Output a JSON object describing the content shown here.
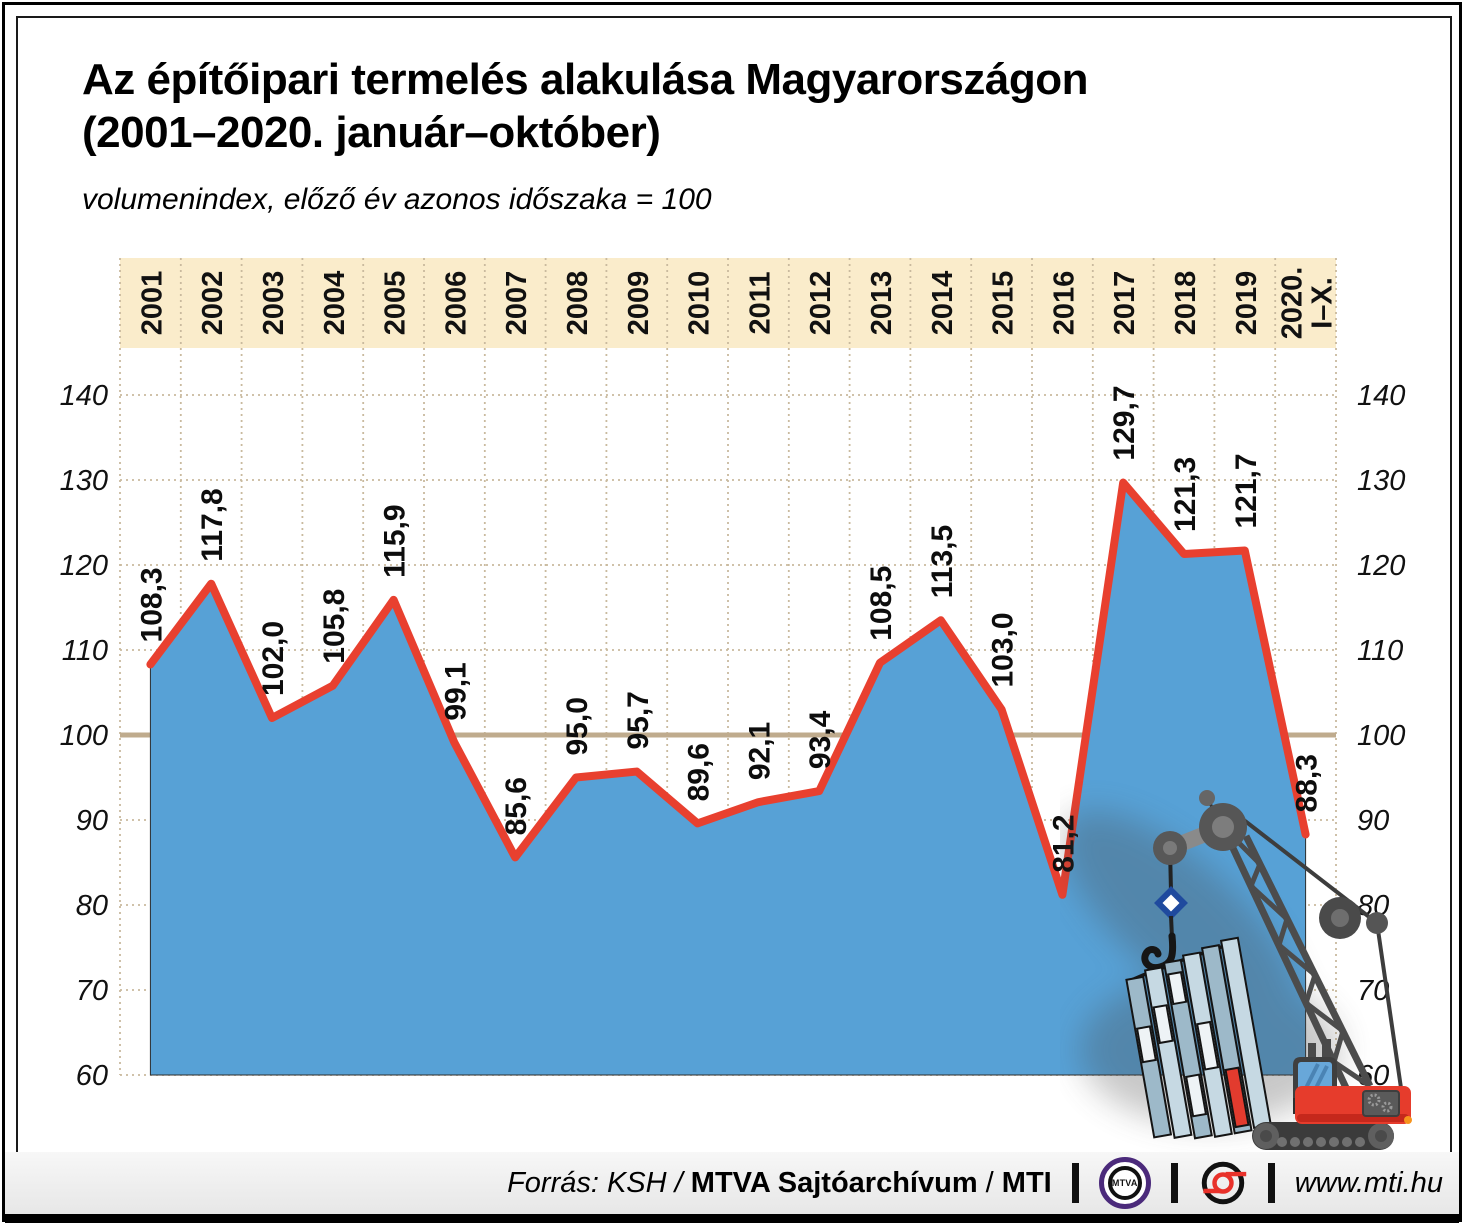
{
  "title_line1": "Az építőipari termelés alakulása Magyarországon",
  "title_line2": "(2001–2020. január–október)",
  "subtitle": "volumenindex, előző év azonos időszaka = 100",
  "chart_data": {
    "type": "area",
    "title": "Az építőipari termelés alakulása Magyarországon (2001–2020. január–október)",
    "subtitle": "volumenindex, előző év azonos időszaka = 100",
    "categories": [
      "2001",
      "2002",
      "2003",
      "2004",
      "2005",
      "2006",
      "2007",
      "2008",
      "2009",
      "2010",
      "2011",
      "2012",
      "2013",
      "2014",
      "2015",
      "2016",
      "2017",
      "2018",
      "2019",
      "2020.\nI–X."
    ],
    "values": [
      108.3,
      117.8,
      102.0,
      105.8,
      115.9,
      99.1,
      85.6,
      95.0,
      95.7,
      89.6,
      92.1,
      93.4,
      108.5,
      113.5,
      103.0,
      81.2,
      129.7,
      121.3,
      121.7,
      88.3
    ],
    "ylim": [
      60,
      140
    ],
    "yticks": [
      60,
      70,
      80,
      90,
      100,
      110,
      120,
      130,
      140
    ],
    "baseline": 100,
    "grid": "dotted",
    "legend": "none",
    "decimal_separator": ",",
    "colors": {
      "area": "#57a1d6",
      "line": "#e8402f",
      "band": "#faeccb",
      "grid": "#c9ba9e",
      "baseline_line": "#bfab8d",
      "label_text": "#0d0d0d"
    }
  },
  "footer": {
    "source_prefix": "Forrás: KSH /",
    "source_bold": "MTVA Sajtóarchívum",
    "source_sep": "/",
    "source_mti": "MTI",
    "mtva_label": "MTVA",
    "website": "www.mti.hu"
  }
}
